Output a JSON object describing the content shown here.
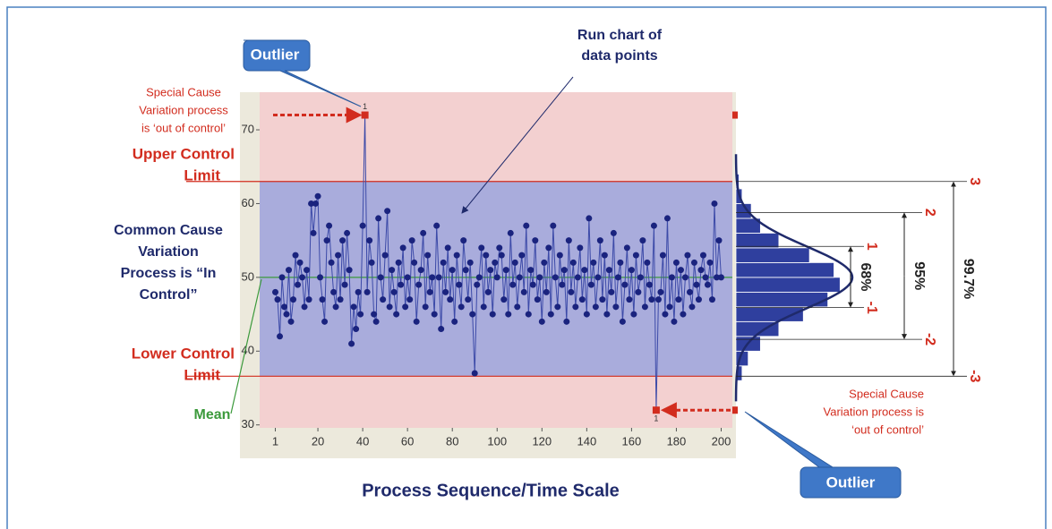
{
  "chart_data": [
    {
      "type": "line",
      "x_title": "Process Sequence/Time Scale",
      "x": [
        1,
        2,
        3,
        4,
        5,
        6,
        7,
        8,
        9,
        10,
        11,
        12,
        13,
        14,
        15,
        16,
        17,
        18,
        19,
        20,
        21,
        22,
        23,
        24,
        25,
        26,
        27,
        28,
        29,
        30,
        31,
        32,
        33,
        34,
        35,
        36,
        37,
        38,
        39,
        40,
        41,
        42,
        43,
        44,
        45,
        46,
        47,
        48,
        49,
        50,
        51,
        52,
        53,
        54,
        55,
        56,
        57,
        58,
        59,
        60,
        61,
        62,
        63,
        64,
        65,
        66,
        67,
        68,
        69,
        70,
        71,
        72,
        73,
        74,
        75,
        76,
        77,
        78,
        79,
        80,
        81,
        82,
        83,
        84,
        85,
        86,
        87,
        88,
        89,
        90,
        91,
        92,
        93,
        94,
        95,
        96,
        97,
        98,
        99,
        100,
        101,
        102,
        103,
        104,
        105,
        106,
        107,
        108,
        109,
        110,
        111,
        112,
        113,
        114,
        115,
        116,
        117,
        118,
        119,
        120,
        121,
        122,
        123,
        124,
        125,
        126,
        127,
        128,
        129,
        130,
        131,
        132,
        133,
        134,
        135,
        136,
        137,
        138,
        139,
        140,
        141,
        142,
        143,
        144,
        145,
        146,
        147,
        148,
        149,
        150,
        151,
        152,
        153,
        154,
        155,
        156,
        157,
        158,
        159,
        160,
        161,
        162,
        163,
        164,
        165,
        166,
        167,
        168,
        169,
        170,
        171,
        172,
        173,
        174,
        175,
        176,
        177,
        178,
        179,
        180,
        181,
        182,
        183,
        184,
        185,
        186,
        187,
        188,
        189,
        190,
        191,
        192,
        193,
        194,
        195,
        196,
        197,
        198,
        199,
        200
      ],
      "values": [
        48,
        47,
        42,
        50,
        46,
        45,
        51,
        44,
        47,
        53,
        49,
        52,
        50,
        46,
        51,
        47,
        60,
        56,
        60,
        61,
        50,
        47,
        44,
        55,
        57,
        52,
        48,
        46,
        53,
        47,
        55,
        49,
        56,
        51,
        41,
        46,
        43,
        48,
        45,
        57,
        72,
        48,
        55,
        52,
        45,
        44,
        58,
        50,
        47,
        53,
        59,
        46,
        51,
        48,
        45,
        52,
        49,
        54,
        46,
        50,
        47,
        55,
        52,
        44,
        49,
        51,
        56,
        46,
        53,
        48,
        50,
        45,
        57,
        50,
        43,
        52,
        48,
        54,
        47,
        51,
        44,
        53,
        49,
        46,
        55,
        51,
        47,
        52,
        45,
        37,
        49,
        50,
        54,
        46,
        53,
        48,
        51,
        45,
        52,
        50,
        54,
        53,
        47,
        51,
        45,
        56,
        49,
        52,
        46,
        50,
        53,
        48,
        57,
        45,
        51,
        49,
        55,
        47,
        50,
        44,
        52,
        48,
        54,
        45,
        57,
        50,
        46,
        53,
        49,
        51,
        44,
        55,
        48,
        52,
        46,
        50,
        54,
        47,
        51,
        45,
        58,
        49,
        52,
        46,
        50,
        55,
        47,
        53,
        45,
        51,
        48,
        56,
        46,
        50,
        52,
        44,
        49,
        54,
        47,
        51,
        45,
        53,
        48,
        50,
        55,
        46,
        52,
        49,
        47,
        57,
        32,
        47,
        48,
        53,
        45,
        58,
        46,
        50,
        44,
        52,
        47,
        51,
        45,
        50,
        53,
        48,
        46,
        52,
        49,
        47,
        51,
        53,
        50,
        49,
        52,
        47,
        60,
        50,
        55,
        50
      ],
      "line_color": "#3c4aa8",
      "point_color": "#1a237e",
      "outlier_color": "#d22c1e",
      "xlim": [
        -6,
        205
      ],
      "xticks": [
        1,
        20,
        40,
        60,
        80,
        100,
        120,
        140,
        160,
        180,
        200
      ],
      "ylim": [
        29.6,
        75.1
      ],
      "yticks": [
        30,
        40,
        50,
        60,
        70
      ],
      "ucl": 63,
      "lcl": 36.6,
      "mean": 50,
      "outlier_label": "1",
      "annotations": {
        "outlier_top": "Outlier",
        "outlier_bottom": "Outlier",
        "run_chart": [
          "Run chart of",
          "data points"
        ],
        "special_top": [
          "Special Cause",
          "Variation process",
          "is ‘out of control’"
        ],
        "special_bottom": [
          "Special Cause",
          "Variation process is",
          "‘out of control’"
        ],
        "ucl_label": [
          "Upper Control",
          "Limit"
        ],
        "common": [
          "Common Cause",
          "Variation",
          "Process is “In",
          "Control”"
        ],
        "lcl_label": [
          "Lower Control",
          "Limit"
        ],
        "mean_label": "Mean"
      }
    },
    {
      "type": "histogram",
      "bins": [
        36,
        38,
        40,
        42,
        44,
        46,
        48,
        50,
        52,
        54,
        56,
        58,
        60,
        62,
        64
      ],
      "counts": [
        2,
        4,
        8,
        14,
        22,
        30,
        34,
        32,
        24,
        14,
        8,
        5,
        2,
        1
      ],
      "color": "#2f3f9e",
      "curve_color": "#1f2a6b",
      "count_lim": [
        0,
        38
      ],
      "normal_fit": {
        "mean": 50,
        "sd": 4.2
      },
      "sigma_lines": [
        {
          "value": 63,
          "label": "3"
        },
        {
          "value": 58.8,
          "label": "2"
        },
        {
          "value": 54.2,
          "label": "1"
        },
        {
          "value": 45.9,
          "label": "-1"
        },
        {
          "value": 41.6,
          "label": "-2"
        },
        {
          "value": 36.6,
          "label": "-3"
        }
      ],
      "ranges": [
        {
          "label": "68%",
          "from": 54.2,
          "to": 45.9
        },
        {
          "label": "95%",
          "from": 58.8,
          "to": 41.6
        },
        {
          "label": "99.7%",
          "from": 63,
          "to": 36.6
        }
      ]
    }
  ]
}
